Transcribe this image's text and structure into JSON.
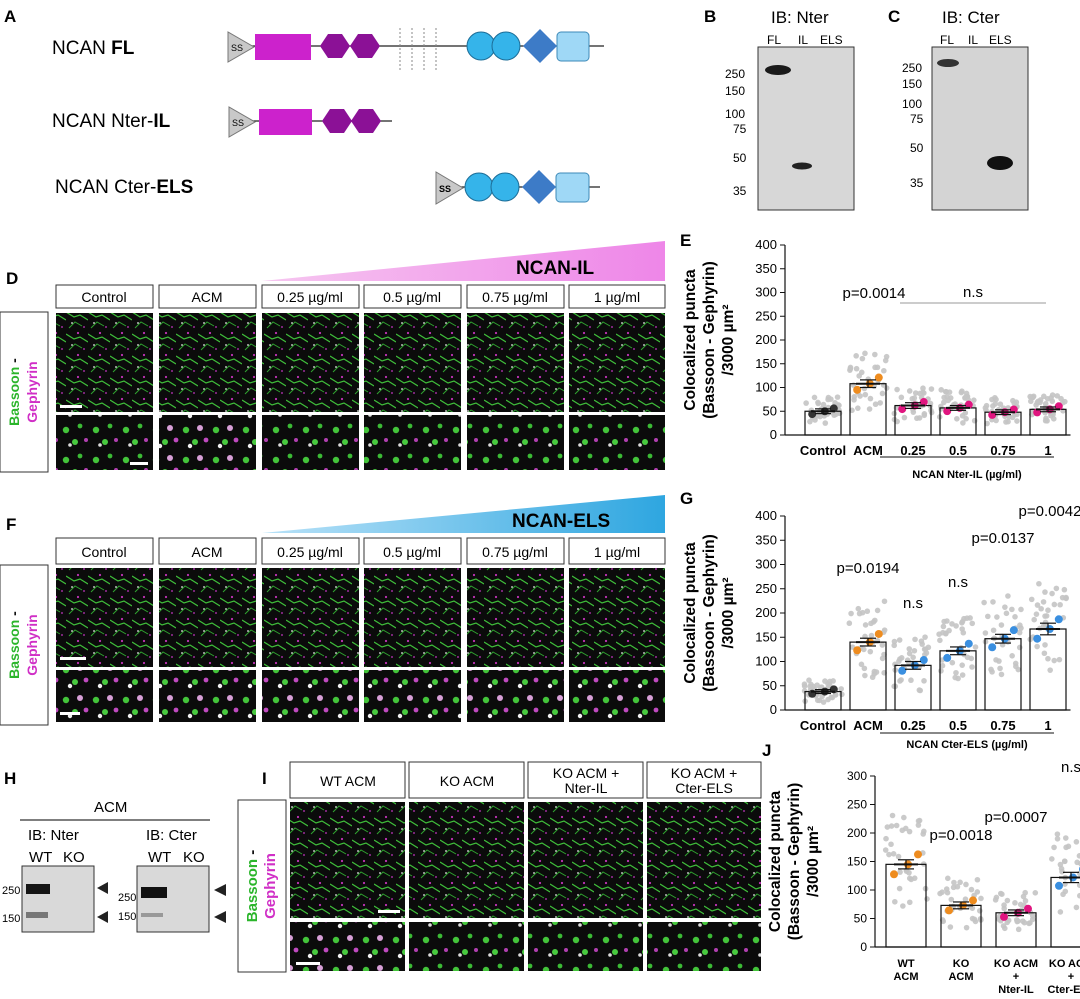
{
  "panels": {
    "A": "A",
    "B": "B",
    "C": "C",
    "D": "D",
    "E": "E",
    "F": "F",
    "G": "G",
    "H": "H",
    "I": "I",
    "J": "J"
  },
  "panelA": {
    "rows": [
      {
        "name": "NCAN ",
        "suffix": "FL"
      },
      {
        "name": "NCAN Nter-",
        "suffix": "IL"
      },
      {
        "name": "NCAN Cter-",
        "suffix": "ELS"
      }
    ],
    "ss": "SS"
  },
  "blotB": {
    "title": "IB: Nter",
    "lanes": [
      "FL",
      "IL",
      "ELS"
    ],
    "markers": [
      "250",
      "150",
      "100",
      "75",
      "50",
      "35"
    ]
  },
  "blotC": {
    "title": "IB: Cter",
    "lanes": [
      "FL",
      "IL",
      "ELS"
    ],
    "markers": [
      "250",
      "150",
      "100",
      "75",
      "50",
      "35"
    ]
  },
  "panelD": {
    "banner": "NCAN-IL",
    "conditions": [
      "Control",
      "ACM",
      "0.25 µg/ml",
      "0.5 µg/ml",
      "0.75 µg/ml",
      "1 µg/ml"
    ]
  },
  "panelF": {
    "banner": "NCAN-ELS",
    "conditions": [
      "Control",
      "ACM",
      "0.25 µg/ml",
      "0.5 µg/ml",
      "0.75 µg/ml",
      "1 µg/ml"
    ]
  },
  "stain": {
    "a": "Bassoon",
    "sep": " - ",
    "b": "Gephyrin"
  },
  "panelH": {
    "title": "ACM",
    "left_title": "IB: Nter",
    "right_title": "IB: Cter",
    "lanes": [
      "WT",
      "KO"
    ],
    "markers": [
      "250",
      "150"
    ]
  },
  "panelI": {
    "conditions": [
      "WT ACM",
      "KO ACM",
      "KO ACM +\nNter-IL",
      "KO ACM +\nCter-ELS"
    ]
  },
  "chart_data": [
    {
      "id": "E",
      "type": "bar",
      "ylabel_lines": [
        "Colocalized puncta",
        "(Bassoon - Gephyrin)",
        "/3000 µm²"
      ],
      "ylim": [
        0,
        400
      ],
      "yticks": [
        0,
        50,
        100,
        150,
        200,
        250,
        300,
        350,
        400
      ],
      "categories": [
        "Control",
        "ACM",
        "0.25",
        "0.5",
        "0.75",
        "1"
      ],
      "values": [
        50,
        108,
        62,
        57,
        48,
        54
      ],
      "errors": [
        5,
        8,
        6,
        5,
        5,
        5
      ],
      "xgroup_label": "NCAN Nter-IL (µg/ml)",
      "annotations": [
        {
          "text": "p=0.0014",
          "category": "ACM"
        },
        {
          "text": "n.s",
          "category": "0.5"
        }
      ],
      "point_colors": [
        "#333333",
        "#ee8c1f",
        "#e0157f",
        "#e0157f",
        "#e0157f",
        "#e0157f"
      ]
    },
    {
      "id": "G",
      "type": "bar",
      "ylabel_lines": [
        "Colocalized puncta",
        "(Bassoon - Gephyrin)",
        "/3000 µm²"
      ],
      "ylim": [
        0,
        400
      ],
      "yticks": [
        0,
        50,
        100,
        150,
        200,
        250,
        300,
        350,
        400
      ],
      "categories": [
        "Control",
        "ACM",
        "0.25",
        "0.5",
        "0.75",
        "1"
      ],
      "values": [
        38,
        140,
        92,
        122,
        147,
        167
      ],
      "errors": [
        4,
        8,
        8,
        8,
        9,
        12
      ],
      "xgroup_label": "NCAN Cter-ELS (µg/ml)",
      "annotations": [
        {
          "text": "p=0.0194",
          "category": "ACM"
        },
        {
          "text": "n.s",
          "category": "0.25"
        },
        {
          "text": "n.s",
          "category": "0.5"
        },
        {
          "text": "p=0.0137",
          "category": "0.75"
        },
        {
          "text": "p=0.0042",
          "category": "1"
        }
      ],
      "point_colors": [
        "#333333",
        "#ee8c1f",
        "#3a8fe0",
        "#3a8fe0",
        "#3a8fe0",
        "#3a8fe0"
      ]
    },
    {
      "id": "J",
      "type": "bar",
      "ylabel_lines": [
        "Colocalized puncta",
        "(Bassoon - Gephyrin)",
        "/3000 µm²"
      ],
      "ylim": [
        0,
        300
      ],
      "yticks": [
        0,
        50,
        100,
        150,
        200,
        250,
        300
      ],
      "categories": [
        "WT\nACM",
        "KO\nACM",
        "KO ACM\n+\nNter-IL",
        "KO ACM\n+\nCter-ELS"
      ],
      "values": [
        145,
        73,
        60,
        122
      ],
      "errors": [
        8,
        6,
        5,
        9
      ],
      "annotations": [
        {
          "text": "p=0.0018",
          "category": "KO\nACM"
        },
        {
          "text": "p=0.0007",
          "category": "KO ACM\n+\nNter-IL"
        },
        {
          "text": "n.s",
          "category": "KO ACM\n+\nCter-ELS"
        }
      ],
      "point_colors": [
        "#ee8c1f",
        "#ee8c1f",
        "#e0157f",
        "#3a8fe0"
      ]
    }
  ]
}
